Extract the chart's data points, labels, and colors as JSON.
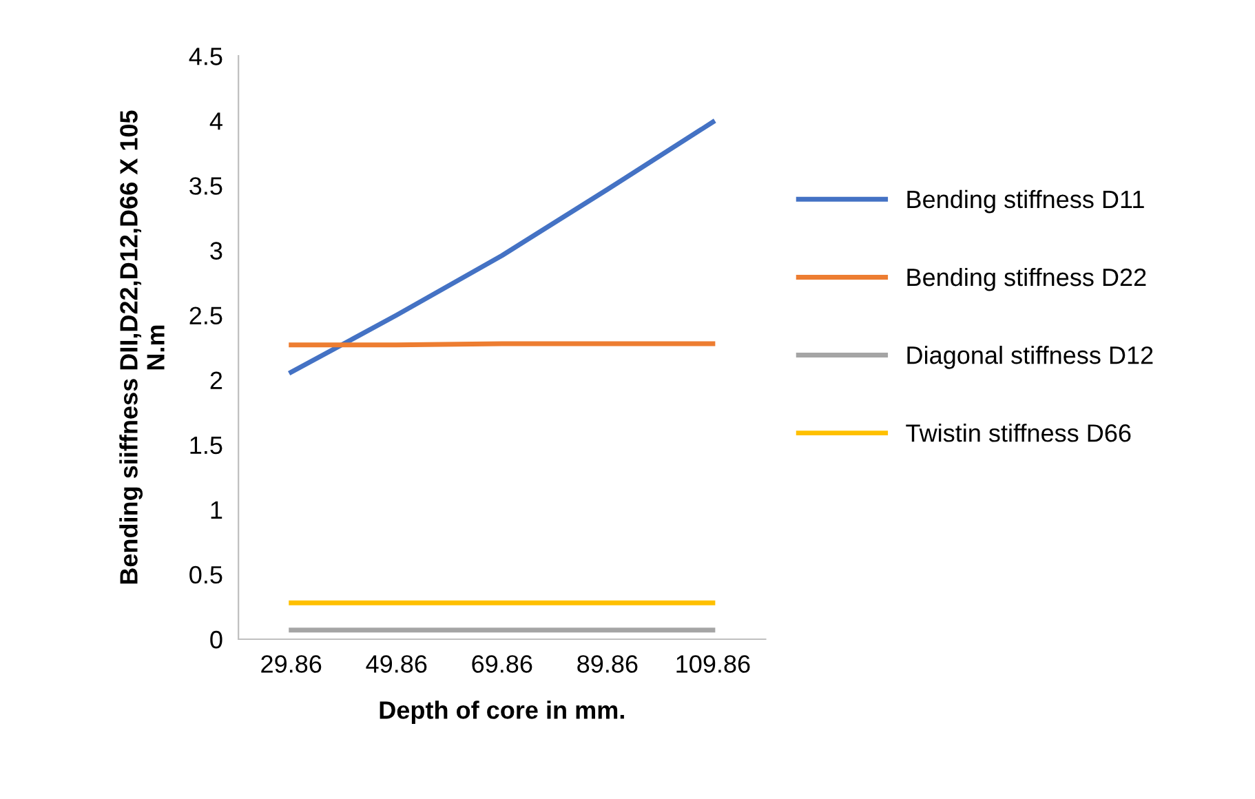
{
  "chart_data": {
    "type": "line",
    "xlabel": "Depth of core in mm.",
    "ylabel": "Bending siiffness DII,D22,D12,D66 X 105\nN.m",
    "categories": [
      "29.86",
      "49.86",
      "69.86",
      "89.86",
      "109.86"
    ],
    "series": [
      {
        "name": "Bending stiffness D11",
        "color": "#4472c4",
        "values": [
          2.06,
          2.5,
          2.96,
          3.47,
          3.99
        ]
      },
      {
        "name": "Bending stiffness D22",
        "color": "#ed7d31",
        "values": [
          2.27,
          2.27,
          2.28,
          2.28,
          2.28
        ]
      },
      {
        "name": "Diagonal stiffness D12",
        "color": "#a5a5a5",
        "values": [
          0.07,
          0.07,
          0.07,
          0.07,
          0.07
        ]
      },
      {
        "name": "Twistin stiffness D66",
        "color": "#ffc000",
        "values": [
          0.28,
          0.28,
          0.28,
          0.28,
          0.28
        ]
      }
    ],
    "ylim": [
      0,
      4.5
    ],
    "yticks": [
      0,
      0.5,
      1,
      1.5,
      2,
      2.5,
      3,
      3.5,
      4,
      4.5
    ],
    "grid": false,
    "legend": "right",
    "marker": "none",
    "line_style": "solid"
  }
}
